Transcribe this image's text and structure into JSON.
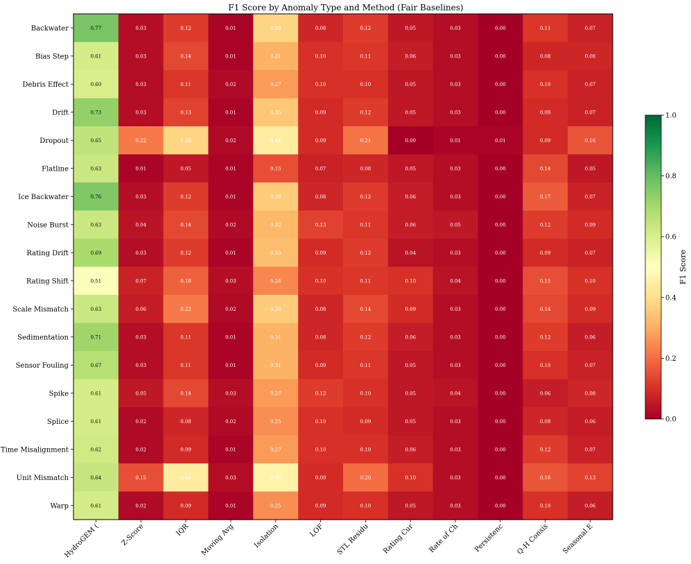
{
  "chart_data": {
    "type": "heatmap",
    "title": "F1 Score by Anomaly Type and Method (Fair Baselines)",
    "columns": [
      "HydroGEM (",
      "Z-Score",
      "IQR",
      "Moving Avg",
      "Isolation",
      "LOF",
      "STL Residu",
      "Rating Cur",
      "Rate of Ch",
      "Persistenc",
      "Q-H Consis",
      "Seasonal E"
    ],
    "rows": [
      "Backwater",
      "Bias Step",
      "Debris Effect",
      "Drift",
      "Dropout",
      "Flatline",
      "Ice Backwater",
      "Noise Burst",
      "Rating Drift",
      "Rating Shift",
      "Scale Mismatch",
      "Sedimentation",
      "Sensor Fouling",
      "Spike",
      "Splice",
      "Time Misalignment",
      "Unit Mismatch",
      "Warp"
    ],
    "values": [
      [
        0.77,
        0.03,
        0.12,
        0.01,
        0.38,
        0.08,
        0.12,
        0.05,
        0.03,
        0.0,
        0.11,
        0.07
      ],
      [
        0.61,
        0.03,
        0.14,
        0.01,
        0.31,
        0.1,
        0.11,
        0.06,
        0.03,
        0.0,
        0.08,
        0.08
      ],
      [
        0.6,
        0.03,
        0.11,
        0.02,
        0.27,
        0.1,
        0.1,
        0.05,
        0.03,
        0.0,
        0.1,
        0.07
      ],
      [
        0.73,
        0.03,
        0.13,
        0.01,
        0.35,
        0.09,
        0.12,
        0.05,
        0.03,
        0.0,
        0.09,
        0.07
      ],
      [
        0.65,
        0.22,
        0.38,
        0.02,
        0.44,
        0.09,
        0.21,
        0.0,
        0.01,
        0.01,
        0.09,
        0.16
      ],
      [
        0.63,
        0.01,
        0.05,
        0.01,
        0.15,
        0.07,
        0.08,
        0.05,
        0.03,
        0.0,
        0.14,
        0.05
      ],
      [
        0.76,
        0.03,
        0.12,
        0.01,
        0.36,
        0.08,
        0.12,
        0.06,
        0.03,
        0.0,
        0.17,
        0.07
      ],
      [
        0.63,
        0.04,
        0.14,
        0.02,
        0.32,
        0.13,
        0.11,
        0.06,
        0.05,
        0.0,
        0.12,
        0.09
      ],
      [
        0.69,
        0.03,
        0.12,
        0.01,
        0.33,
        0.09,
        0.12,
        0.04,
        0.03,
        0.0,
        0.09,
        0.07
      ],
      [
        0.51,
        0.07,
        0.18,
        0.03,
        0.24,
        0.1,
        0.11,
        0.1,
        0.04,
        0.0,
        0.15,
        0.1
      ],
      [
        0.63,
        0.06,
        0.22,
        0.02,
        0.36,
        0.08,
        0.14,
        0.09,
        0.03,
        0.0,
        0.14,
        0.09
      ],
      [
        0.71,
        0.03,
        0.11,
        0.01,
        0.31,
        0.08,
        0.12,
        0.06,
        0.03,
        0.0,
        0.12,
        0.06
      ],
      [
        0.67,
        0.03,
        0.11,
        0.01,
        0.31,
        0.09,
        0.11,
        0.05,
        0.03,
        0.0,
        0.1,
        0.07
      ],
      [
        0.61,
        0.05,
        0.14,
        0.03,
        0.27,
        0.12,
        0.1,
        0.05,
        0.04,
        0.0,
        0.06,
        0.08
      ],
      [
        0.61,
        0.02,
        0.08,
        0.02,
        0.25,
        0.1,
        0.09,
        0.05,
        0.03,
        0.0,
        0.08,
        0.06
      ],
      [
        0.62,
        0.02,
        0.09,
        0.01,
        0.27,
        0.1,
        0.1,
        0.06,
        0.03,
        0.0,
        0.12,
        0.07
      ],
      [
        0.64,
        0.15,
        0.44,
        0.03,
        0.46,
        0.09,
        0.2,
        0.1,
        0.03,
        0.0,
        0.16,
        0.13
      ],
      [
        0.61,
        0.02,
        0.09,
        0.01,
        0.25,
        0.09,
        0.1,
        0.05,
        0.03,
        0.0,
        0.1,
        0.06
      ]
    ],
    "colormap": "RdYlGn",
    "vmin": 0.0,
    "vmax": 1.0,
    "colorbar": {
      "label": "F1 Score",
      "ticks": [
        "0.0",
        "0.2",
        "0.4",
        "0.6",
        "0.8",
        "1.0"
      ]
    }
  }
}
